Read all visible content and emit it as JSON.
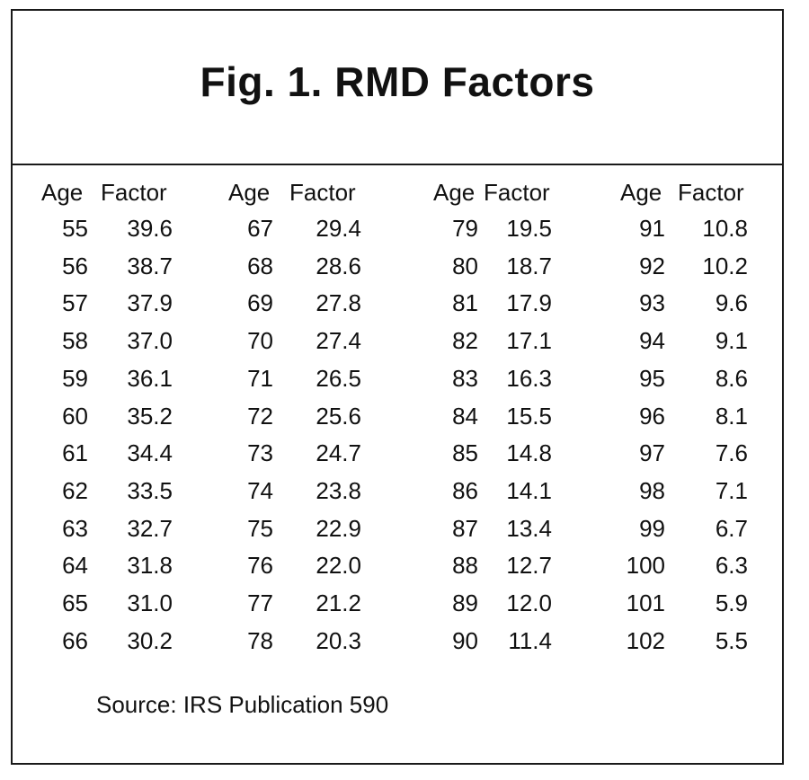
{
  "title": "Fig. 1.  RMD Factors",
  "headers": {
    "age": "Age",
    "factor": "Factor"
  },
  "groups": [
    {
      "rows": [
        {
          "age": "55",
          "factor": "39.6"
        },
        {
          "age": "56",
          "factor": "38.7"
        },
        {
          "age": "57",
          "factor": "37.9"
        },
        {
          "age": "58",
          "factor": "37.0"
        },
        {
          "age": "59",
          "factor": "36.1"
        },
        {
          "age": "60",
          "factor": "35.2"
        },
        {
          "age": "61",
          "factor": "34.4"
        },
        {
          "age": "62",
          "factor": "33.5"
        },
        {
          "age": "63",
          "factor": "32.7"
        },
        {
          "age": "64",
          "factor": "31.8"
        },
        {
          "age": "65",
          "factor": "31.0"
        },
        {
          "age": "66",
          "factor": "30.2"
        }
      ]
    },
    {
      "rows": [
        {
          "age": "67",
          "factor": "29.4"
        },
        {
          "age": "68",
          "factor": "28.6"
        },
        {
          "age": "69",
          "factor": "27.8"
        },
        {
          "age": "70",
          "factor": "27.4"
        },
        {
          "age": "71",
          "factor": "26.5"
        },
        {
          "age": "72",
          "factor": "25.6"
        },
        {
          "age": "73",
          "factor": "24.7"
        },
        {
          "age": "74",
          "factor": "23.8"
        },
        {
          "age": "75",
          "factor": "22.9"
        },
        {
          "age": "76",
          "factor": "22.0"
        },
        {
          "age": "77",
          "factor": "21.2"
        },
        {
          "age": "78",
          "factor": "20.3"
        }
      ]
    },
    {
      "rows": [
        {
          "age": "79",
          "factor": "19.5"
        },
        {
          "age": "80",
          "factor": "18.7"
        },
        {
          "age": "81",
          "factor": "17.9"
        },
        {
          "age": "82",
          "factor": "17.1"
        },
        {
          "age": "83",
          "factor": "16.3"
        },
        {
          "age": "84",
          "factor": "15.5"
        },
        {
          "age": "85",
          "factor": "14.8"
        },
        {
          "age": "86",
          "factor": "14.1"
        },
        {
          "age": "87",
          "factor": "13.4"
        },
        {
          "age": "88",
          "factor": "12.7"
        },
        {
          "age": "89",
          "factor": "12.0"
        },
        {
          "age": "90",
          "factor": "11.4"
        }
      ]
    },
    {
      "rows": [
        {
          "age": "91",
          "factor": "10.8"
        },
        {
          "age": "92",
          "factor": "10.2"
        },
        {
          "age": "93",
          "factor": "9.6"
        },
        {
          "age": "94",
          "factor": "9.1"
        },
        {
          "age": "95",
          "factor": "8.6"
        },
        {
          "age": "96",
          "factor": "8.1"
        },
        {
          "age": "97",
          "factor": "7.6"
        },
        {
          "age": "98",
          "factor": "7.1"
        },
        {
          "age": "99",
          "factor": "6.7"
        },
        {
          "age": "100",
          "factor": "6.3"
        },
        {
          "age": "101",
          "factor": "5.9"
        },
        {
          "age": "102",
          "factor": "5.5"
        }
      ]
    }
  ],
  "source": "Source:  IRS Publication 590"
}
